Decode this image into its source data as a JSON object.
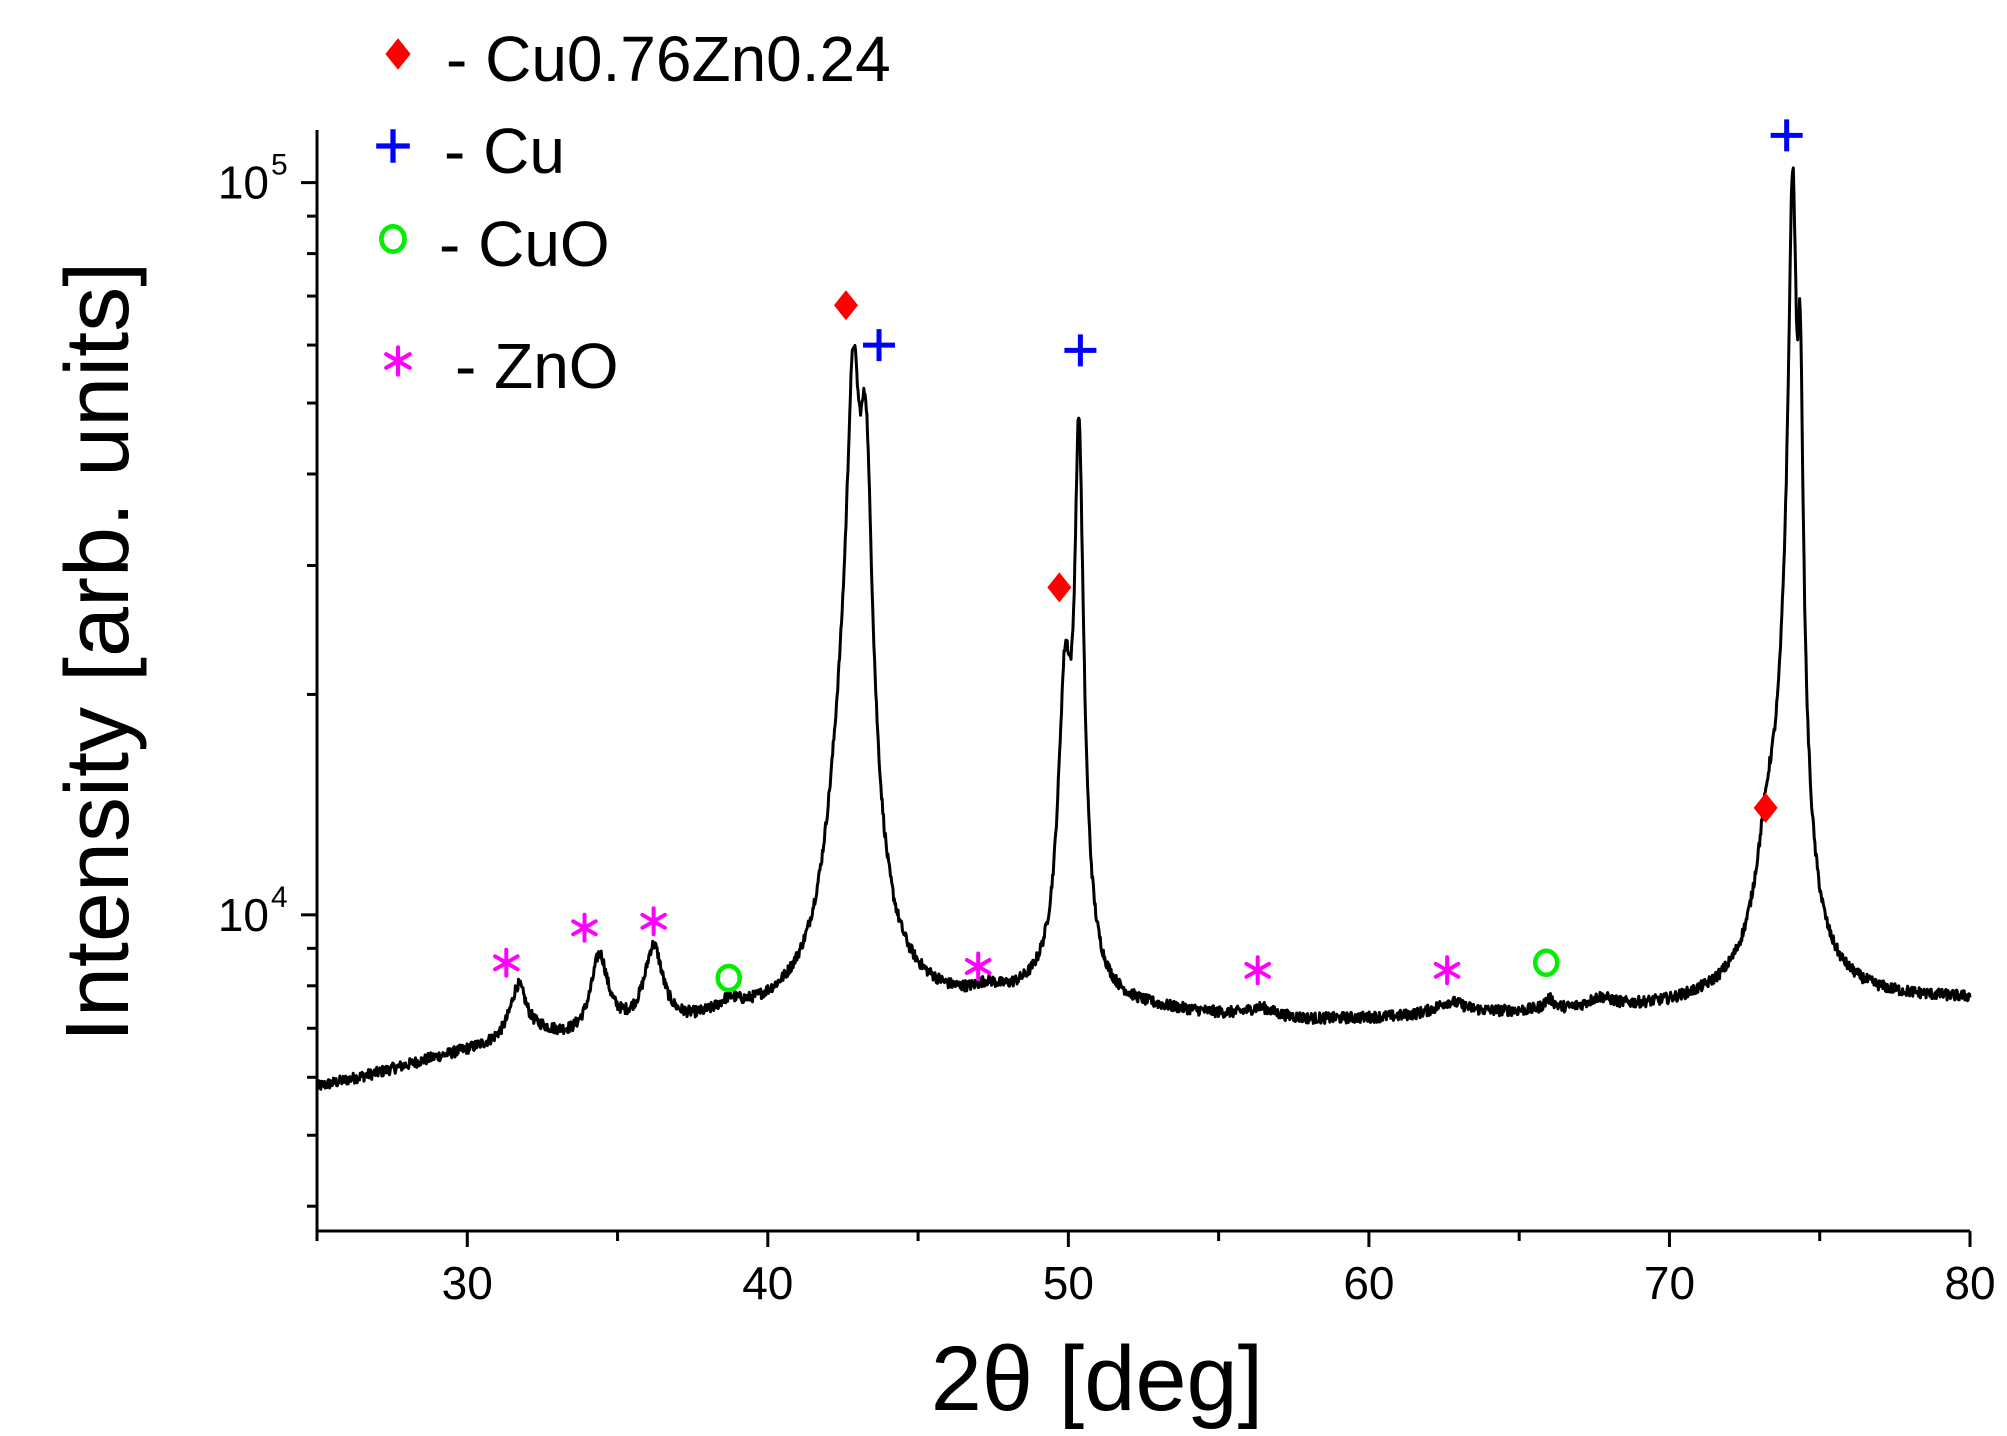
{
  "chart_data": {
    "type": "line",
    "xlabel": "2θ [deg]",
    "ylabel": "Intensity [arb. units]",
    "xlim": [
      25,
      80
    ],
    "ylim": [
      3700,
      118000
    ],
    "yscale": "log",
    "grid": false,
    "x_ticks": [
      30,
      40,
      50,
      60,
      70,
      80
    ],
    "x_tick_labels": [
      "30",
      "40",
      "50",
      "60",
      "70",
      "80"
    ],
    "y_major_ticks": [
      {
        "value": 10000,
        "base": "10",
        "exp": "4"
      },
      {
        "value": 100000,
        "base": "10",
        "exp": "5"
      }
    ],
    "y_minor_ticks": [
      4000,
      5000,
      6000,
      7000,
      8000,
      9000,
      20000,
      30000,
      40000,
      50000,
      60000,
      70000,
      80000,
      90000
    ],
    "baseline": [
      [
        25,
        5800
      ],
      [
        27,
        6050
      ],
      [
        29,
        6350
      ],
      [
        31,
        6600
      ],
      [
        32.5,
        6800
      ],
      [
        33.5,
        6700
      ],
      [
        35,
        6850
      ],
      [
        37,
        6950
      ],
      [
        39,
        7150
      ],
      [
        41,
        7250
      ],
      [
        44,
        7500
      ],
      [
        46,
        7450
      ],
      [
        49,
        7600
      ],
      [
        52,
        7400
      ],
      [
        55,
        7250
      ],
      [
        58,
        7150
      ],
      [
        61,
        7200
      ],
      [
        64,
        7300
      ],
      [
        67,
        7350
      ],
      [
        70,
        7450
      ],
      [
        72,
        7600
      ],
      [
        75,
        7700
      ],
      [
        77,
        7650
      ],
      [
        80,
        7650
      ]
    ],
    "peaks": [
      {
        "x": 31.7,
        "height": 1250,
        "width": 0.32
      },
      {
        "x": 34.4,
        "height": 1900,
        "width": 0.32
      },
      {
        "x": 36.2,
        "height": 2000,
        "width": 0.35
      },
      {
        "x": 38.7,
        "height": 250,
        "width": 0.4
      },
      {
        "x": 42.5,
        "height": 6000,
        "width": 0.55
      },
      {
        "x": 42.85,
        "height": 42000,
        "width": 0.22
      },
      {
        "x": 43.25,
        "height": 32000,
        "width": 0.2
      },
      {
        "x": 47.3,
        "height": 200,
        "width": 0.4
      },
      {
        "x": 49.9,
        "height": 13000,
        "width": 0.22
      },
      {
        "x": 50.35,
        "height": 38000,
        "width": 0.13
      },
      {
        "x": 56.4,
        "height": 200,
        "width": 0.5
      },
      {
        "x": 62.7,
        "height": 300,
        "width": 0.6
      },
      {
        "x": 66.0,
        "height": 250,
        "width": 0.2
      },
      {
        "x": 67.7,
        "height": 250,
        "width": 0.5
      },
      {
        "x": 73.3,
        "height": 4000,
        "width": 0.45
      },
      {
        "x": 73.95,
        "height": 9000,
        "width": 0.35
      },
      {
        "x": 74.1,
        "height": 85000,
        "width": 0.12
      },
      {
        "x": 74.35,
        "height": 40000,
        "width": 0.08
      }
    ],
    "markers": [
      {
        "phase": "Cu0.76Zn0.24",
        "x": 42.6,
        "y": 68000
      },
      {
        "phase": "Cu0.76Zn0.24",
        "x": 49.7,
        "y": 28000
      },
      {
        "phase": "Cu0.76Zn0.24",
        "x": 73.2,
        "y": 14000
      },
      {
        "phase": "Cu",
        "x": 43.7,
        "y": 60000
      },
      {
        "phase": "Cu",
        "x": 50.4,
        "y": 59000
      },
      {
        "phase": "Cu",
        "x": 73.9,
        "y": 116000
      },
      {
        "phase": "CuO",
        "x": 38.7,
        "y": 8200
      },
      {
        "phase": "CuO",
        "x": 65.9,
        "y": 8600
      },
      {
        "phase": "ZnO",
        "x": 31.3,
        "y": 8600
      },
      {
        "phase": "ZnO",
        "x": 33.9,
        "y": 9600
      },
      {
        "phase": "ZnO",
        "x": 36.2,
        "y": 9800
      },
      {
        "phase": "ZnO",
        "x": 47.0,
        "y": 8500
      },
      {
        "phase": "ZnO",
        "x": 56.3,
        "y": 8400
      },
      {
        "phase": "ZnO",
        "x": 62.6,
        "y": 8400
      }
    ]
  },
  "legend": [
    {
      "phase": "Cu0.76Zn0.24",
      "symbol": "diamond",
      "glyph": "♦",
      "label": "- Cu0.76Zn0.24",
      "color": "#ff0000"
    },
    {
      "phase": "Cu",
      "symbol": "plus",
      "glyph": "+",
      "label": "- Cu",
      "color": "#0000ff"
    },
    {
      "phase": "CuO",
      "symbol": "circle",
      "glyph": "o",
      "label": "- CuO",
      "color": "#00ee00"
    },
    {
      "phase": "ZnO",
      "symbol": "asterisk",
      "glyph": "*",
      "label": "- ZnO",
      "color": "#ff00ff"
    }
  ],
  "line_color": "#000000"
}
